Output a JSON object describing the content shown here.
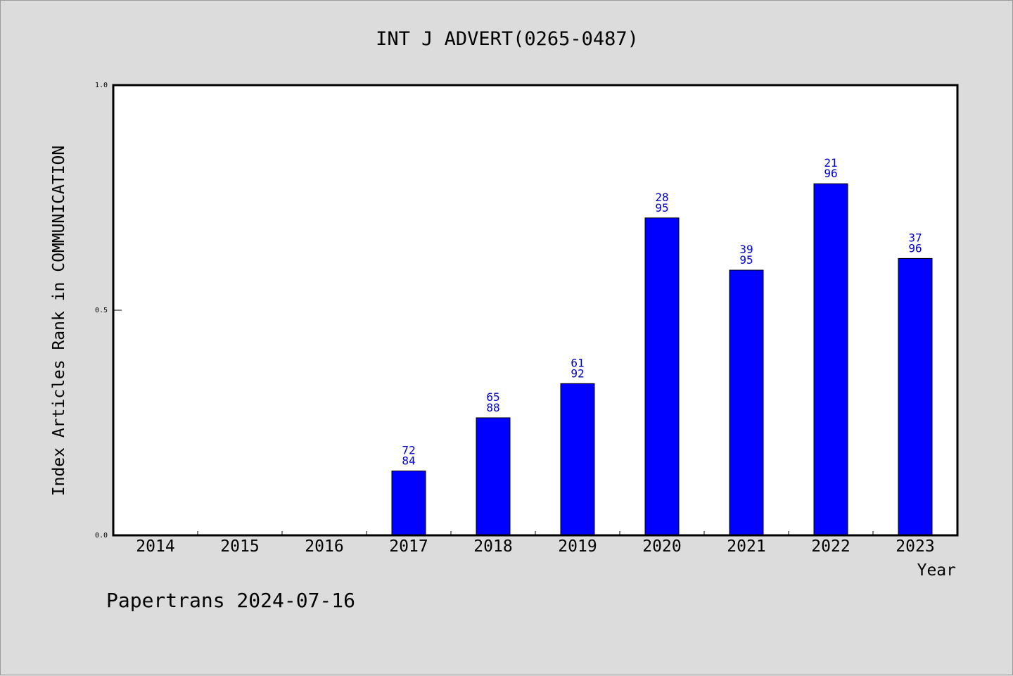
{
  "chart_data": {
    "type": "bar",
    "title": "INT J ADVERT(0265-0487)",
    "xlabel": "Year",
    "ylabel": "Index Articles Rank in COMMUNICATION",
    "categories": [
      "2014",
      "2015",
      "2016",
      "2017",
      "2018",
      "2019",
      "2020",
      "2021",
      "2022",
      "2023"
    ],
    "values": [
      null,
      null,
      null,
      0.143,
      0.261,
      0.337,
      0.705,
      0.589,
      0.781,
      0.615
    ],
    "labels": [
      null,
      null,
      null,
      [
        "72",
        "84"
      ],
      [
        "65",
        "88"
      ],
      [
        "61",
        "92"
      ],
      [
        "28",
        "95"
      ],
      [
        "39",
        "95"
      ],
      [
        "21",
        "96"
      ],
      [
        "37",
        "96"
      ]
    ],
    "ylim": [
      0,
      1
    ],
    "yticks": [
      "0.0",
      "0.5",
      "1.0"
    ],
    "bar_color": "#0000ff",
    "label_color": "#0000cc",
    "grid": false
  },
  "footer": "Papertrans 2024-07-16"
}
